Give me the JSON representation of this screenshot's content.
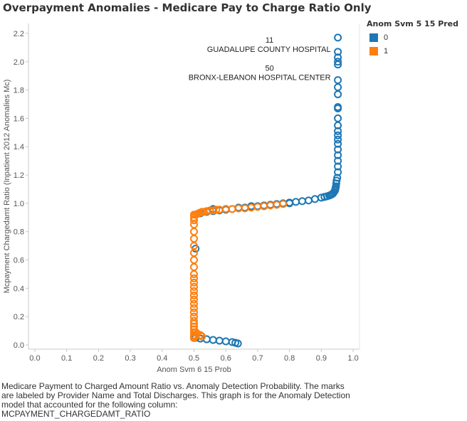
{
  "page": {
    "title": "Overpayment Anomalies - Medicare Pay to Charge Ratio Only"
  },
  "legend": {
    "title": "Anom Svm 5 15 Pred",
    "items": [
      {
        "label": "0",
        "color": "#1f77b4"
      },
      {
        "label": "1",
        "color": "#ff7f0e"
      }
    ]
  },
  "caption": {
    "lines": [
      "Medicare Payment to Charged Amount Ratio vs. Anomaly Detection Probability. The marks",
      "are labeled by Provider Name and Total Discharges. This graph is for the Anomaly Detection",
      "model that accounted for the following column:",
      "MCPAYMENT_CHARGEDAMT_RATIO"
    ]
  },
  "chart_data": {
    "type": "scatter",
    "title": "Overpayment Anomalies - Medicare Pay to Charge Ratio Only",
    "xlabel": "Anom Svm 6 15 Prob",
    "ylabel": "Mcpayment Chargedamt Ratio (Inpatient 2012 Anomalies Mc)",
    "xlim": [
      -0.02,
      1.02
    ],
    "ylim": [
      -0.03,
      2.27
    ],
    "x_ticks": [
      "0.0",
      "0.1",
      "0.2",
      "0.3",
      "0.4",
      "0.5",
      "0.6",
      "0.7",
      "0.8",
      "0.9",
      "1.0"
    ],
    "y_ticks": [
      "0.0",
      "0.2",
      "0.4",
      "0.6",
      "0.8",
      "1.0",
      "1.2",
      "1.4",
      "1.6",
      "1.8",
      "2.0",
      "2.2"
    ],
    "grid": false,
    "legend_position": "right",
    "marker": "hollow-circle",
    "series": [
      {
        "name": "0",
        "color": "#1f77b4",
        "x": [
          0.952,
          0.952,
          0.952,
          0.952,
          0.952,
          0.952,
          0.952,
          0.952,
          0.952,
          0.952,
          0.952,
          0.952,
          0.952,
          0.952,
          0.952,
          0.952,
          0.952,
          0.952,
          0.952,
          0.952,
          0.952,
          0.95,
          0.948,
          0.947,
          0.946,
          0.945,
          0.944,
          0.943,
          0.94,
          0.937,
          0.934,
          0.93,
          0.925,
          0.918,
          0.91,
          0.9,
          0.88,
          0.86,
          0.84,
          0.82,
          0.8,
          0.78,
          0.76,
          0.74,
          0.72,
          0.7,
          0.68,
          0.66,
          0.64,
          0.62,
          0.6,
          0.58,
          0.56,
          0.54,
          0.52,
          0.505,
          0.52,
          0.56,
          0.6,
          0.64,
          0.68,
          0.72,
          0.76,
          0.8,
          0.505,
          0.52,
          0.54,
          0.56,
          0.58,
          0.6,
          0.62,
          0.63,
          0.638
        ],
        "y": [
          2.17,
          2.07,
          2.03,
          2.0,
          1.98,
          1.87,
          1.82,
          1.77,
          1.68,
          1.67,
          1.6,
          1.55,
          1.51,
          1.48,
          1.45,
          1.42,
          1.38,
          1.34,
          1.3,
          1.26,
          1.22,
          1.18,
          1.16,
          1.14,
          1.12,
          1.11,
          1.1,
          1.09,
          1.08,
          1.07,
          1.065,
          1.06,
          1.055,
          1.05,
          1.045,
          1.04,
          1.03,
          1.02,
          1.015,
          1.01,
          1.005,
          1.0,
          0.995,
          0.99,
          0.985,
          0.98,
          0.975,
          0.97,
          0.965,
          0.96,
          0.955,
          0.95,
          0.945,
          0.94,
          0.93,
          0.68,
          0.93,
          0.96,
          0.96,
          0.97,
          0.98,
          0.98,
          0.99,
          1.0,
          0.05,
          0.045,
          0.04,
          0.035,
          0.03,
          0.025,
          0.02,
          0.015,
          0.01
        ]
      },
      {
        "name": "1",
        "color": "#ff7f0e",
        "x": [
          0.5,
          0.5,
          0.5,
          0.5,
          0.5,
          0.5,
          0.5,
          0.5,
          0.5,
          0.5,
          0.5,
          0.5,
          0.5,
          0.5,
          0.5,
          0.5,
          0.5,
          0.5,
          0.5,
          0.5,
          0.5,
          0.5,
          0.5,
          0.5,
          0.5,
          0.5,
          0.5,
          0.5,
          0.5,
          0.5,
          0.5,
          0.5,
          0.5,
          0.5,
          0.5,
          0.5,
          0.5,
          0.5,
          0.5,
          0.5,
          0.5,
          0.505,
          0.51,
          0.515,
          0.52,
          0.525,
          0.53,
          0.54,
          0.55,
          0.56,
          0.57,
          0.58,
          0.6,
          0.62,
          0.64,
          0.66,
          0.68,
          0.7,
          0.72,
          0.74,
          0.76,
          0.78,
          0.505,
          0.51,
          0.52,
          0.525
        ],
        "y": [
          0.92,
          0.9,
          0.88,
          0.85,
          0.8,
          0.75,
          0.7,
          0.65,
          0.6,
          0.55,
          0.5,
          0.47,
          0.44,
          0.41,
          0.38,
          0.35,
          0.32,
          0.29,
          0.26,
          0.23,
          0.2,
          0.17,
          0.15,
          0.13,
          0.11,
          0.09,
          0.07,
          0.06,
          0.05,
          0.05,
          0.05,
          0.05,
          0.05,
          0.05,
          0.05,
          0.05,
          0.05,
          0.05,
          0.05,
          0.05,
          0.05,
          0.92,
          0.925,
          0.93,
          0.935,
          0.94,
          0.94,
          0.945,
          0.95,
          0.95,
          0.955,
          0.955,
          0.96,
          0.96,
          0.965,
          0.965,
          0.97,
          0.975,
          0.98,
          0.985,
          0.99,
          0.995,
          0.09,
          0.08,
          0.07,
          0.06
        ]
      }
    ],
    "annotations": [
      {
        "lines": [
          "11",
          "GUADALUPE COUNTY HOSPITAL"
        ],
        "x": 0.952,
        "y": 2.07
      },
      {
        "lines": [
          "50",
          "BRONX-LEBANON HOSPITAL CENTER"
        ],
        "x": 0.952,
        "y": 1.87
      }
    ]
  }
}
